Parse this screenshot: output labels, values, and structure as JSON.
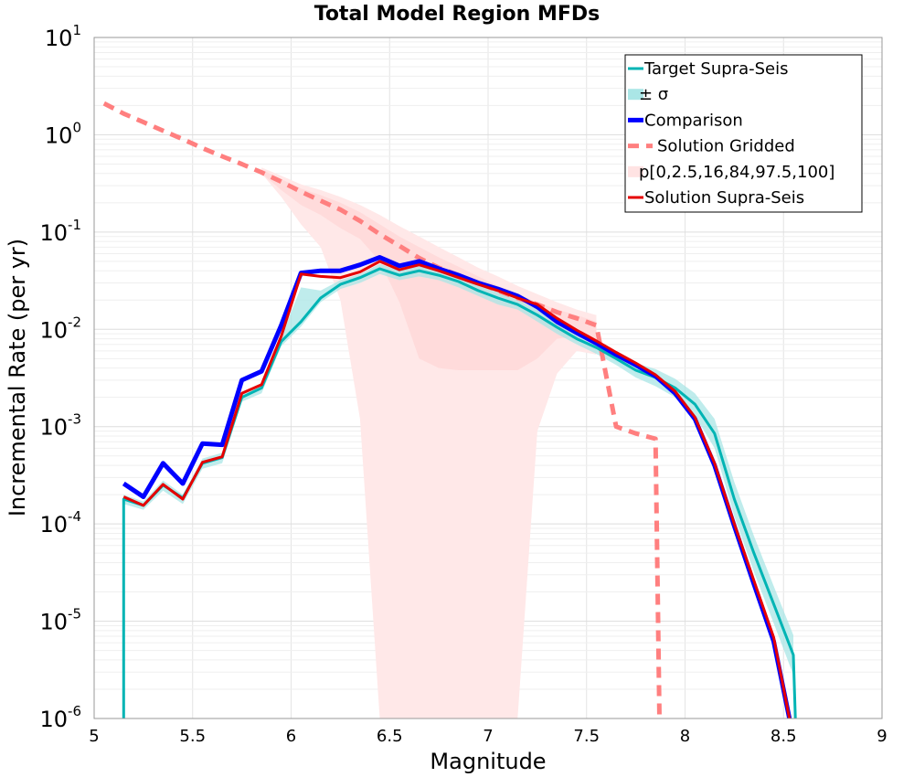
{
  "chart_data": {
    "type": "line",
    "title": "Total Model Region MFDs",
    "xlabel": "Magnitude",
    "ylabel": "Incremental Rate (per yr)",
    "xlim": [
      5,
      9
    ],
    "ylim": [
      1e-06,
      10
    ],
    "y_scale": "log",
    "grid": true,
    "legend_placement": "top-right",
    "x_ticks": [
      "5",
      "5.5",
      "6",
      "6.5",
      "7",
      "7.5",
      "8",
      "8.5",
      "9"
    ],
    "x_tick_values": [
      5,
      5.5,
      6,
      6.5,
      7,
      7.5,
      8,
      8.5,
      9
    ],
    "y_ticks": [
      {
        "base": "10",
        "exp": "1",
        "value": 10
      },
      {
        "base": "10",
        "exp": "0",
        "value": 1
      },
      {
        "base": "10",
        "exp": "-1",
        "value": 0.1
      },
      {
        "base": "10",
        "exp": "-2",
        "value": 0.01
      },
      {
        "base": "10",
        "exp": "-3",
        "value": 0.001
      },
      {
        "base": "10",
        "exp": "-4",
        "value": 0.0001
      },
      {
        "base": "10",
        "exp": "-5",
        "value": 1e-05
      },
      {
        "base": "10",
        "exp": "-6",
        "value": 1e-06
      }
    ],
    "legend": [
      {
        "label": "Target Supra-Seis",
        "style": "line",
        "color": "#00b4b4",
        "width": 3
      },
      {
        "label": "± σ",
        "style": "band",
        "color": "#aae6e6"
      },
      {
        "label": "Comparison",
        "style": "line",
        "color": "#0000ff",
        "width": 5
      },
      {
        "label": "Solution Gridded",
        "style": "dash",
        "color": "#ff7f7f",
        "width": 5
      },
      {
        "label": "p[0,2.5,16,84,97.5,100]",
        "style": "band",
        "color": "#ffe3e3"
      },
      {
        "label": "Solution Supra-Seis",
        "style": "line",
        "color": "#e60000",
        "width": 3
      }
    ],
    "series": [
      {
        "name": "Target Supra-Seis",
        "color": "#00b4b4",
        "x": [
          5.15,
          5.15,
          5.25,
          5.35,
          5.45,
          5.55,
          5.65,
          5.75,
          5.85,
          5.95,
          6.05,
          6.15,
          6.25,
          6.35,
          6.45,
          6.55,
          6.65,
          6.75,
          6.85,
          6.95,
          7.05,
          7.15,
          7.25,
          7.35,
          7.45,
          7.55,
          7.65,
          7.75,
          7.85,
          7.95,
          8.05,
          8.15,
          8.25,
          8.35,
          8.45,
          8.55,
          8.56
        ],
        "y": [
          1e-06,
          0.00018,
          0.000155,
          0.00025,
          0.000185,
          0.00042,
          0.00048,
          0.002,
          0.0025,
          0.0075,
          0.012,
          0.021,
          0.029,
          0.034,
          0.042,
          0.036,
          0.04,
          0.036,
          0.031,
          0.025,
          0.021,
          0.018,
          0.014,
          0.0105,
          0.008,
          0.0065,
          0.005,
          0.0038,
          0.0032,
          0.0025,
          0.0017,
          0.00085,
          0.00018,
          5e-05,
          1.5e-05,
          4.5e-06,
          1e-06
        ]
      },
      {
        "name": "± σ",
        "color": "#aae6e6",
        "x": [
          5.15,
          5.25,
          5.35,
          5.45,
          5.55,
          5.65,
          5.75,
          5.85,
          5.95,
          6.05,
          6.15,
          6.25,
          6.35,
          6.45,
          6.55,
          6.65,
          6.75,
          6.85,
          6.95,
          7.05,
          7.15,
          7.25,
          7.35,
          7.45,
          7.55,
          7.65,
          7.75,
          7.85,
          7.95,
          8.05,
          8.15,
          8.25,
          8.35,
          8.45,
          8.55
        ],
        "lower": [
          0.00016,
          0.00014,
          0.00022,
          0.00016,
          0.00037,
          0.00042,
          0.0018,
          0.0022,
          0.0067,
          0.0107,
          0.019,
          0.026,
          0.03,
          0.037,
          0.032,
          0.035,
          0.032,
          0.027,
          0.022,
          0.018,
          0.016,
          0.012,
          0.009,
          0.007,
          0.0056,
          0.0043,
          0.0032,
          0.0026,
          0.002,
          0.0013,
          0.0006,
          0.00012,
          3.2e-05,
          9.5e-06,
          2.8e-06
        ],
        "upper": [
          0.0002,
          0.00017,
          0.00028,
          0.0002,
          0.00047,
          0.00054,
          0.0022,
          0.0028,
          0.0084,
          0.027,
          0.025,
          0.032,
          0.037,
          0.047,
          0.04,
          0.045,
          0.04,
          0.035,
          0.028,
          0.024,
          0.02,
          0.016,
          0.012,
          0.0092,
          0.0075,
          0.0058,
          0.0045,
          0.0039,
          0.0031,
          0.0022,
          0.0012,
          0.00027,
          7.5e-05,
          2.3e-05,
          7.2e-06
        ]
      },
      {
        "name": "Comparison",
        "color": "#0000ff",
        "x": [
          5.15,
          5.25,
          5.35,
          5.45,
          5.55,
          5.65,
          5.75,
          5.85,
          5.95,
          6.05,
          6.15,
          6.25,
          6.35,
          6.45,
          6.55,
          6.65,
          6.75,
          6.85,
          6.95,
          7.05,
          7.15,
          7.25,
          7.35,
          7.45,
          7.55,
          7.65,
          7.75,
          7.85,
          7.95,
          8.05,
          8.15,
          8.25,
          8.35,
          8.45,
          8.53
        ],
        "y": [
          0.00026,
          0.00019,
          0.00042,
          0.00026,
          0.00067,
          0.00065,
          0.003,
          0.0037,
          0.011,
          0.038,
          0.04,
          0.04,
          0.046,
          0.055,
          0.045,
          0.05,
          0.042,
          0.036,
          0.03,
          0.026,
          0.022,
          0.017,
          0.012,
          0.0092,
          0.0072,
          0.0055,
          0.0043,
          0.0033,
          0.0022,
          0.0012,
          0.0004,
          9.5e-05,
          2.4e-05,
          6.2e-06,
          1e-06
        ]
      },
      {
        "name": "Solution Gridded",
        "color": "#ff7f7f",
        "x": [
          5.05,
          5.15,
          5.25,
          5.35,
          5.45,
          5.55,
          5.65,
          5.75,
          5.85,
          5.95,
          6.05,
          6.15,
          6.25,
          6.35,
          6.45,
          6.55,
          6.65,
          6.75,
          6.85,
          6.95,
          7.05,
          7.15,
          7.25,
          7.35,
          7.45,
          7.55,
          7.65,
          7.75,
          7.85,
          7.87
        ],
        "y": [
          2.1,
          1.65,
          1.35,
          1.1,
          0.9,
          0.73,
          0.6,
          0.5,
          0.41,
          0.33,
          0.26,
          0.21,
          0.17,
          0.13,
          0.095,
          0.072,
          0.054,
          0.043,
          0.036,
          0.03,
          0.025,
          0.021,
          0.018,
          0.015,
          0.013,
          0.011,
          0.001,
          0.00085,
          0.00075,
          1e-06
        ]
      },
      {
        "name": "p[0,2.5,16,84,97.5,100]",
        "color": "#ffe3e3",
        "x": [
          5.85,
          5.95,
          6.05,
          6.15,
          6.25,
          6.35,
          6.45,
          6.55,
          6.65,
          6.75,
          6.85,
          6.95,
          7.05,
          7.15,
          7.25,
          7.35,
          7.45,
          7.55
        ],
        "min": [
          0.4,
          0.23,
          0.12,
          0.07,
          0.02,
          0.0012,
          1e-06,
          1e-06,
          1e-06,
          1e-06,
          1e-06,
          1e-06,
          1e-06,
          1e-06,
          0.0009,
          0.0035,
          0.006,
          0.0055
        ],
        "inner_lower": [
          0.4,
          0.27,
          0.19,
          0.15,
          0.11,
          0.085,
          0.05,
          0.019,
          0.005,
          0.004,
          0.0038,
          0.0038,
          0.0038,
          0.0038,
          0.005,
          0.008,
          0.0085,
          0.0075
        ],
        "inner_upper": [
          0.44,
          0.35,
          0.28,
          0.24,
          0.2,
          0.16,
          0.12,
          0.09,
          0.07,
          0.055,
          0.044,
          0.035,
          0.028,
          0.023,
          0.019,
          0.016,
          0.014,
          0.012
        ],
        "max": [
          0.46,
          0.38,
          0.31,
          0.27,
          0.23,
          0.19,
          0.15,
          0.115,
          0.09,
          0.07,
          0.055,
          0.043,
          0.035,
          0.028,
          0.023,
          0.019,
          0.016,
          0.014
        ]
      },
      {
        "name": "Solution Supra-Seis",
        "color": "#e60000",
        "x": [
          5.15,
          5.25,
          5.35,
          5.45,
          5.55,
          5.65,
          5.75,
          5.85,
          5.95,
          6.05,
          6.15,
          6.25,
          6.35,
          6.45,
          6.55,
          6.65,
          6.75,
          6.85,
          6.95,
          7.05,
          7.15,
          7.25,
          7.35,
          7.45,
          7.55,
          7.65,
          7.75,
          7.85,
          7.95,
          8.05,
          8.15,
          8.25,
          8.35,
          8.45,
          8.53
        ],
        "y": [
          0.00019,
          0.000155,
          0.000255,
          0.00018,
          0.00043,
          0.00049,
          0.0022,
          0.0027,
          0.0085,
          0.037,
          0.035,
          0.034,
          0.039,
          0.05,
          0.041,
          0.046,
          0.04,
          0.034,
          0.029,
          0.025,
          0.021,
          0.018,
          0.013,
          0.0098,
          0.0076,
          0.0058,
          0.0045,
          0.0034,
          0.0023,
          0.00125,
          0.00042,
          0.0001,
          2.6e-05,
          6.8e-06,
          1e-06
        ]
      }
    ]
  }
}
